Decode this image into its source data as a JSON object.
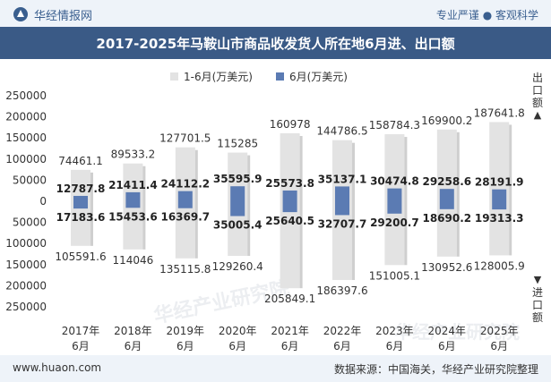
{
  "header": {
    "brand": "华经情报网",
    "slogan": "专业严谨 ● 客观科学"
  },
  "colors": {
    "accent": "#3a5a86",
    "export_bar": "#5b7bb3",
    "total_bar": "#e3e3e3"
  },
  "side_labels": {
    "top": "出口额",
    "bottom": "进口额",
    "top_arrow": "▲",
    "bottom_arrow": "▼"
  },
  "watermarks": [
    "华经产业研究院",
    "华经产业研究院"
  ],
  "chart_data": {
    "type": "bar",
    "title": "2017-2025年马鞍山市商品收发货人所在地6月进、出口额",
    "legend": [
      "1-6月(万美元)",
      "6月(万美元)"
    ],
    "categories": [
      "2017年6月",
      "2018年6月",
      "2019年6月",
      "2020年6月",
      "2021年6月",
      "2022年6月",
      "2023年6月",
      "2024年6月",
      "2025年6月"
    ],
    "ylim": [
      -250000,
      250000
    ],
    "yticks": [
      250000,
      200000,
      150000,
      100000,
      50000,
      0,
      -50000,
      -100000,
      -150000,
      -200000,
      -250000
    ],
    "ytick_labels": [
      "250000",
      "200000",
      "150000",
      "100000",
      "50000",
      "0",
      "50000",
      "100000",
      "150000",
      "200000",
      "250000"
    ],
    "series": [
      {
        "name": "1-6月出口额(万美元)",
        "values": [
          74461.1,
          89533.2,
          127701.5,
          115285,
          160978,
          144786.5,
          158784.3,
          169900.2,
          187641.8
        ],
        "labels": [
          "74461.1",
          "89533.2",
          "127701.5",
          "115285",
          "160978",
          "144786.5",
          "158784.3",
          "169900.2",
          "187641.8"
        ]
      },
      {
        "name": "1-6月进口额(万美元)",
        "values": [
          -105591.6,
          -114046,
          -135115.8,
          -129260.4,
          -205849.1,
          -186397.6,
          -151005.1,
          -130952.6,
          -128005.9
        ],
        "labels": [
          "105591.6",
          "114046",
          "135115.8",
          "129260.4",
          "205849.1",
          "186397.6",
          "151005.1",
          "130952.6",
          "128005.9"
        ]
      },
      {
        "name": "6月出口额(万美元)",
        "values": [
          12787.8,
          21411.4,
          24112.2,
          35595.9,
          25573.8,
          35137.1,
          30474.8,
          29258.6,
          28191.9
        ],
        "labels": [
          "12787.8",
          "21411.4",
          "24112.2",
          "35595.9",
          "25573.8",
          "35137.1",
          "30474.8",
          "29258.6",
          "28191.9"
        ]
      },
      {
        "name": "6月进口额(万美元)",
        "values": [
          -17183.6,
          -15453.6,
          -16369.7,
          -35005.4,
          -25640.5,
          -32707.7,
          -29200.7,
          -18690.2,
          -19313.3
        ],
        "labels": [
          "17183.6",
          "15453.6",
          "16369.7",
          "35005.4",
          "25640.5",
          "32707.7",
          "29200.7",
          "18690.2",
          "19313.3"
        ]
      }
    ]
  },
  "footer": {
    "site": "www.huaon.com",
    "source": "数据来源：中国海关，华经产业研究院整理"
  }
}
